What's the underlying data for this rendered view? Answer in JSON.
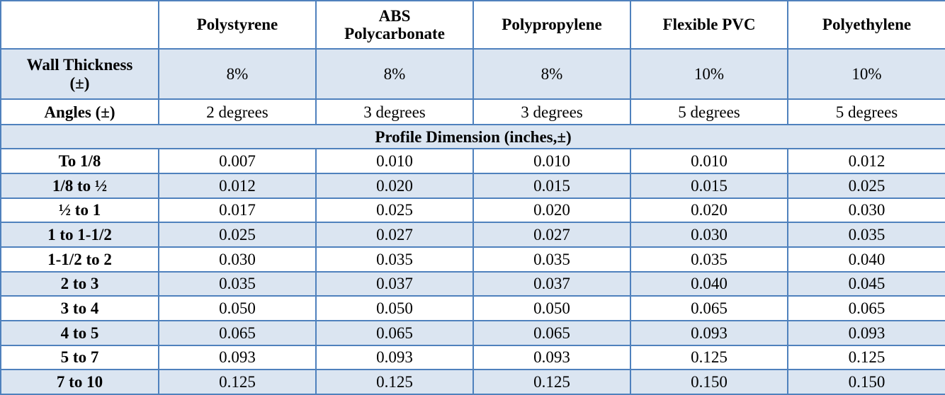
{
  "table": {
    "header": [
      "Polystyrene",
      "ABS Polycarbonate",
      "Polypropylene",
      "Flexible PVC",
      "Polyethylene"
    ],
    "rows": [
      {
        "label": "Wall Thickness (±)",
        "values": [
          "8%",
          "8%",
          "8%",
          "10%",
          "10%"
        ]
      },
      {
        "label": "Angles (±)",
        "values": [
          "2 degrees",
          "3 degrees",
          "3 degrees",
          "5 degrees",
          "5 degrees"
        ]
      }
    ],
    "section": "Profile Dimension (inches,±)",
    "profile_rows": [
      {
        "label": "To 1/8",
        "values": [
          "0.007",
          "0.010",
          "0.010",
          "0.010",
          "0.012"
        ]
      },
      {
        "label": "1/8 to ½",
        "values": [
          "0.012",
          "0.020",
          "0.015",
          "0.015",
          "0.025"
        ]
      },
      {
        "label": "½ to 1",
        "values": [
          "0.017",
          "0.025",
          "0.020",
          "0.020",
          "0.030"
        ]
      },
      {
        "label": "1 to 1-1/2",
        "values": [
          "0.025",
          "0.027",
          "0.027",
          "0.030",
          "0.035"
        ]
      },
      {
        "label": "1-1/2 to 2",
        "values": [
          "0.030",
          "0.035",
          "0.035",
          "0.035",
          "0.040"
        ]
      },
      {
        "label": "2 to 3",
        "values": [
          "0.035",
          "0.037",
          "0.037",
          "0.040",
          "0.045"
        ]
      },
      {
        "label": "3 to 4",
        "values": [
          "0.050",
          "0.050",
          "0.050",
          "0.065",
          "0.065"
        ]
      },
      {
        "label": "4 to 5",
        "values": [
          "0.065",
          "0.065",
          "0.065",
          "0.093",
          "0.093"
        ]
      },
      {
        "label": "5 to 7",
        "values": [
          "0.093",
          "0.093",
          "0.093",
          "0.125",
          "0.125"
        ]
      },
      {
        "label": "7 to 10",
        "values": [
          "0.125",
          "0.125",
          "0.125",
          "0.150",
          "0.150"
        ]
      }
    ]
  }
}
